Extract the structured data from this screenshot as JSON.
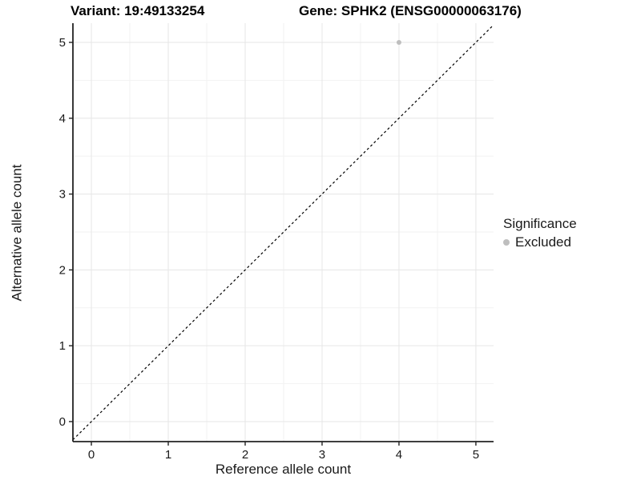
{
  "figure": {
    "title_left": "Variant: 19:49133254",
    "title_right": "Gene: SPHK2 (ENSG00000063176)"
  },
  "chart_data": {
    "type": "scatter",
    "xlabel": "Reference allele count",
    "ylabel": "Alternative allele count",
    "x_ticks": [
      0,
      1,
      2,
      3,
      4,
      5
    ],
    "y_ticks": [
      0,
      1,
      2,
      3,
      4,
      5
    ],
    "xlim": [
      -0.24,
      5.23
    ],
    "ylim": [
      -0.264,
      5.253
    ],
    "grid": {
      "major": true,
      "minor": true
    },
    "points": [
      {
        "x": 4,
        "y": 5,
        "series": "Excluded"
      }
    ],
    "abline": {
      "slope": 1,
      "intercept": 0,
      "style": "dashed"
    },
    "legend": {
      "title": "Significance",
      "position": "right",
      "entries": [
        {
          "label": "Excluded",
          "color": "#bebebe"
        }
      ]
    },
    "colors": {
      "background": "#ffffff",
      "grid_major": "#e6e6e6",
      "grid_minor": "#f2f2f2",
      "axis_line": "#222222",
      "tick_label": "#1a1a1a",
      "abline": "#000000",
      "point": "#bebebe"
    },
    "tick_label_font_px": 15
  }
}
